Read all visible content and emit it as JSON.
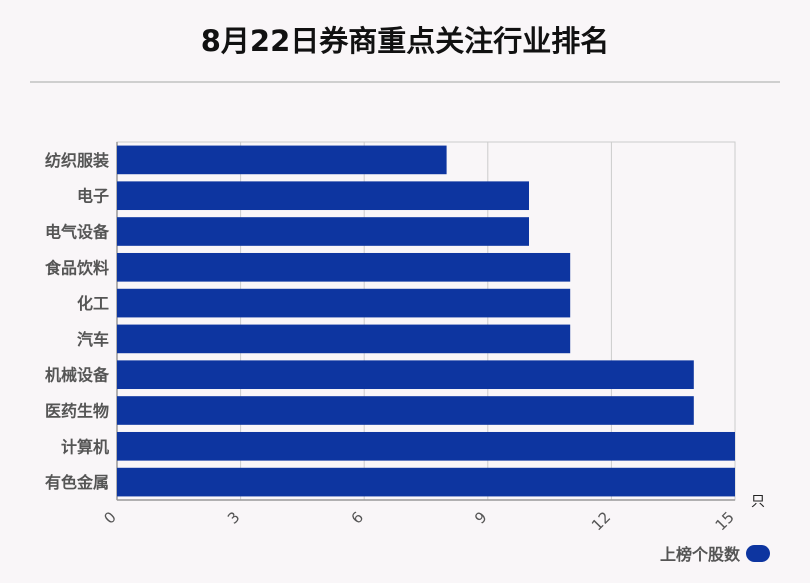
{
  "colors": {
    "bar": "#0d35a0",
    "grid": "#cccccc",
    "background": "#f9f6f8"
  },
  "chart_data": {
    "type": "bar",
    "orientation": "horizontal",
    "title": "8月22日券商重点关注行业排名",
    "categories": [
      "纺织服装",
      "电子",
      "电气设备",
      "食品饮料",
      "化工",
      "汽车",
      "机械设备",
      "医药生物",
      "计算机",
      "有色金属"
    ],
    "series": [
      {
        "name": "上榜个股数",
        "values": [
          8,
          10,
          10,
          11,
          11,
          11,
          14,
          14,
          15,
          15
        ]
      }
    ],
    "xlim": [
      0,
      15
    ],
    "xticks": [
      0,
      3,
      6,
      9,
      12,
      15
    ],
    "xunit": "只",
    "grid": true,
    "legend_position": "bottom-right"
  }
}
